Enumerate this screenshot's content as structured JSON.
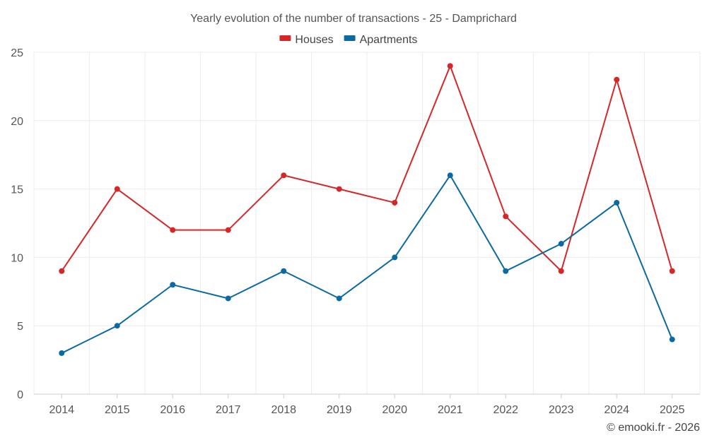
{
  "chart_data": {
    "type": "line",
    "title": "Yearly evolution of the number of transactions - 25 - Damprichard",
    "categories": [
      "2014",
      "2015",
      "2016",
      "2017",
      "2018",
      "2019",
      "2020",
      "2021",
      "2022",
      "2023",
      "2024",
      "2025"
    ],
    "series": [
      {
        "name": "Houses",
        "color": "#d62728",
        "values": [
          9,
          15,
          12,
          12,
          16,
          15,
          14,
          24,
          13,
          9,
          23,
          9
        ]
      },
      {
        "name": "Apartments",
        "color": "#0b6aa2",
        "values": [
          3,
          5,
          8,
          7,
          9,
          7,
          10,
          16,
          9,
          11,
          14,
          4
        ]
      }
    ],
    "ylim": [
      0,
      25
    ],
    "yticks": [
      0,
      5,
      10,
      15,
      20,
      25
    ],
    "xlabel": "",
    "ylabel": "",
    "grid": true,
    "legend": "top-center"
  },
  "footer": {
    "credit": "© emooki.fr - 2026"
  }
}
